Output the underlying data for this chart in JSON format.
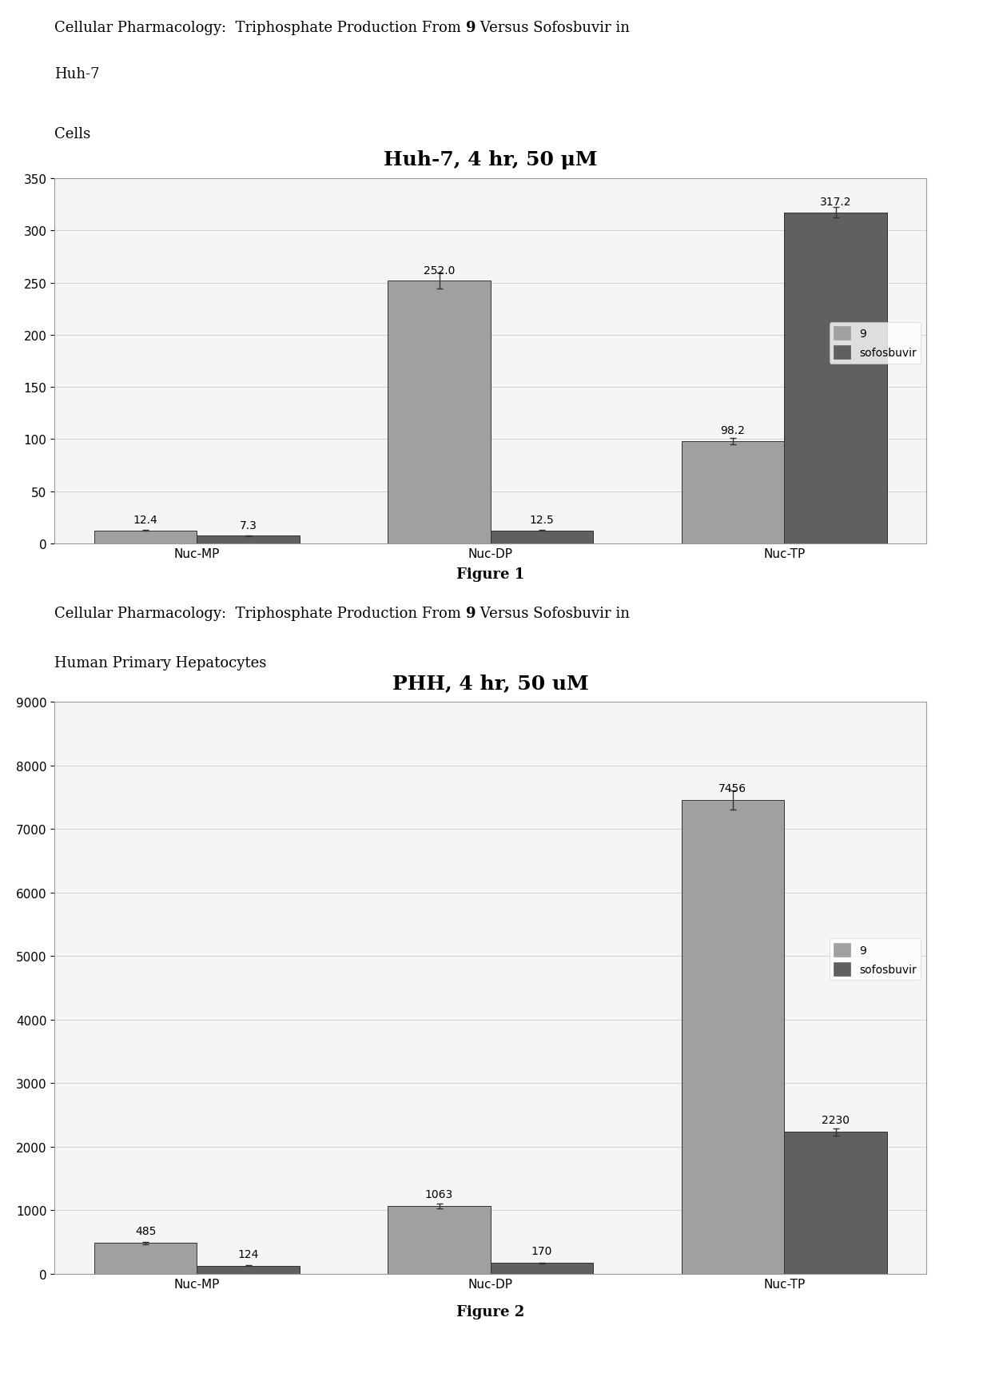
{
  "fig1": {
    "title": "Huh-7, 4 hr, 50 μM",
    "categories": [
      "Nuc-MP",
      "Nuc-DP",
      "Nuc-TP"
    ],
    "series1_label": "9",
    "series2_label": "sofosbuvir",
    "series1_values": [
      12.4,
      252.0,
      98.2
    ],
    "series2_values": [
      7.3,
      12.5,
      317.2
    ],
    "series1_errors": [
      0.5,
      8.0,
      3.0
    ],
    "series2_errors": [
      0.3,
      0.5,
      5.0
    ],
    "ylim": [
      0,
      350
    ],
    "yticks": [
      0,
      50,
      100,
      150,
      200,
      250,
      300,
      350
    ],
    "bar_color1": "#a0a0a0",
    "bar_color2": "#606060",
    "caption": "Figure 1"
  },
  "fig2": {
    "title": "PHH, 4 hr, 50 uM",
    "categories": [
      "Nuc-MP",
      "Nuc-DP",
      "Nuc-TP"
    ],
    "series1_label": "9",
    "series2_label": "sofosbuvir",
    "series1_values": [
      485.0,
      1063.0,
      7456.0
    ],
    "series2_values": [
      124.0,
      170.0,
      2230.0
    ],
    "series1_errors": [
      20.0,
      40.0,
      150.0
    ],
    "series2_errors": [
      5.0,
      8.0,
      60.0
    ],
    "ylim": [
      0,
      9000
    ],
    "yticks": [
      0,
      1000,
      2000,
      3000,
      4000,
      5000,
      6000,
      7000,
      8000,
      9000
    ],
    "bar_color1": "#a0a0a0",
    "bar_color2": "#606060",
    "caption": "Figure 2"
  },
  "text1_line1a": "Cellular Pharmacology:  Triphosphate Production From ",
  "text1_bold": "9",
  "text1_line1b": " Versus Sofosbuvir in",
  "text1_line2": "Huh-7",
  "text1_line3": "Cells",
  "text2_line1a": "Cellular Pharmacology:  Triphosphate Production From ",
  "text2_bold": "9",
  "text2_line1b": " Versus Sofosbuvir in",
  "text2_line2": "Human Primary Hepatocytes",
  "bg_color": "#ffffff",
  "text_color": "#000000",
  "font_size_text": 13,
  "font_size_title": 18,
  "font_size_axis": 11,
  "font_size_bar_label": 10,
  "font_size_caption": 13
}
